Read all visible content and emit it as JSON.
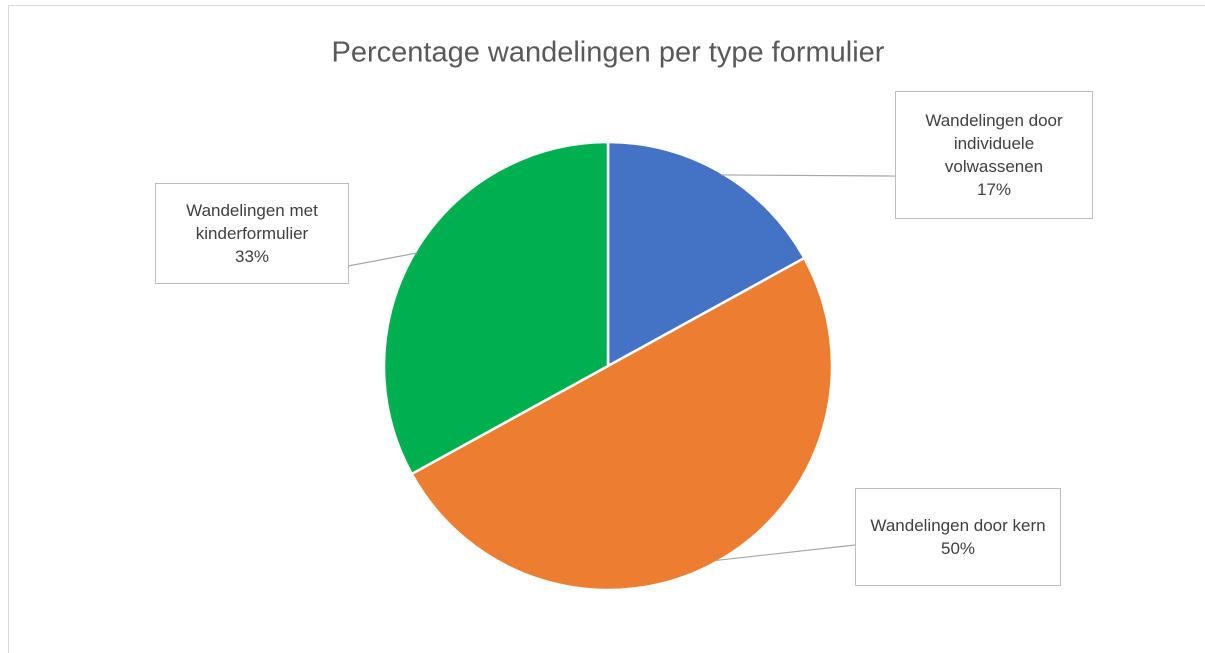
{
  "chart_data": {
    "type": "pie",
    "title": "Percentage wandelingen per type formulier",
    "categories": [
      "Wandelingen door individuele volwassenen",
      "Wandelingen door kern",
      "Wandelingen met kinderformulier"
    ],
    "values": [
      17,
      50,
      33
    ],
    "value_labels": [
      "17%",
      "50%",
      "33%"
    ],
    "colors": [
      "#4472c4",
      "#ed7d31",
      "#00b050"
    ]
  }
}
